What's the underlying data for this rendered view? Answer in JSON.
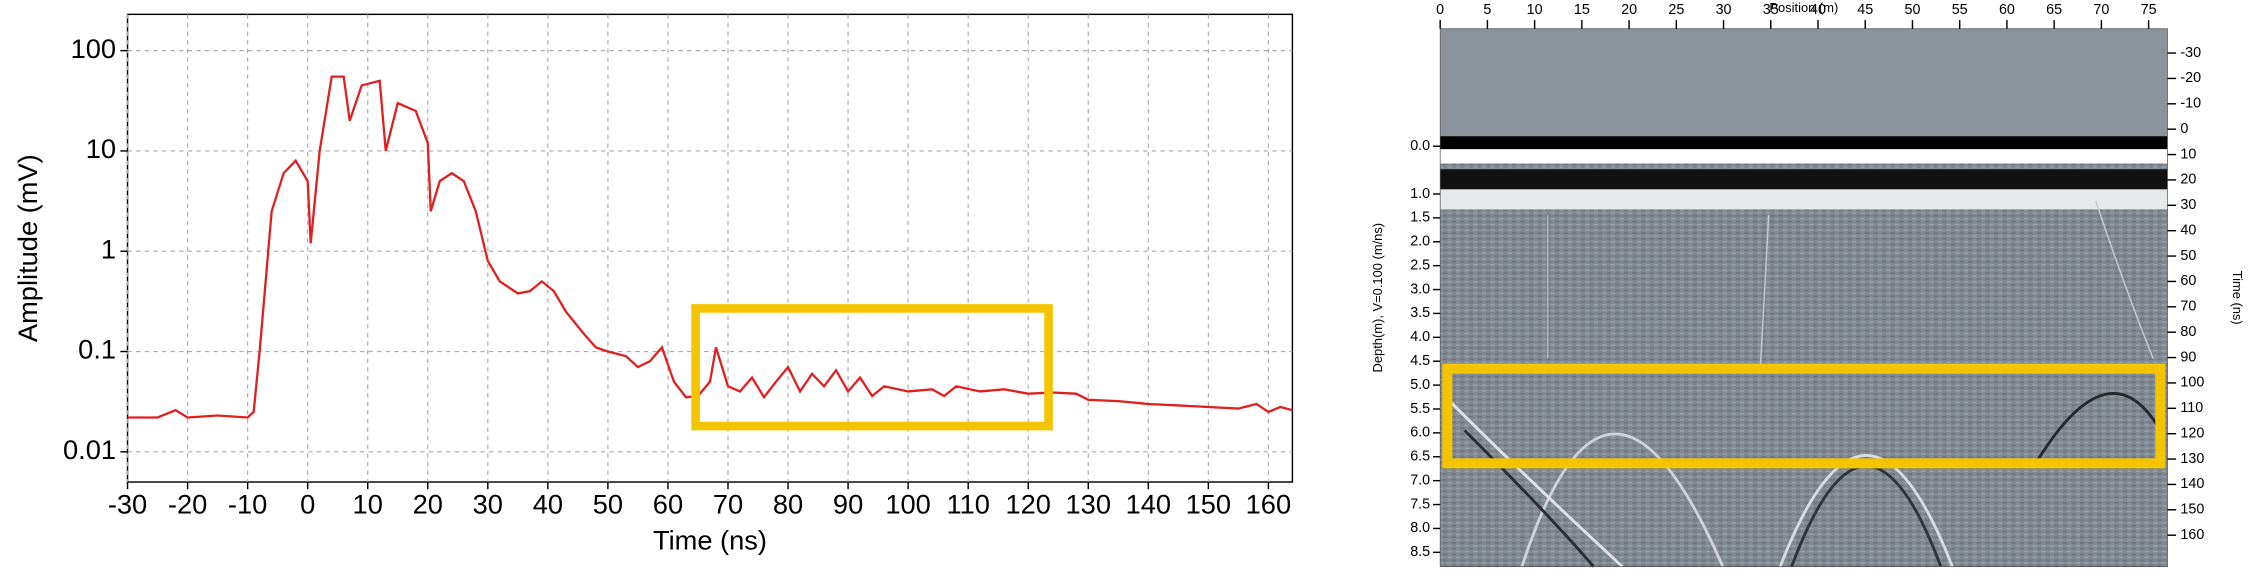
{
  "chart_data": [
    {
      "type": "line",
      "xlabel": "Time (ns)",
      "ylabel": "Amplitude (mV)",
      "log_y": true,
      "grid": true,
      "xlim": [
        -30,
        164
      ],
      "ylim": [
        0.005,
        230
      ],
      "xticks": [
        -30,
        -20,
        -10,
        0,
        10,
        20,
        30,
        40,
        50,
        60,
        70,
        80,
        90,
        100,
        110,
        120,
        130,
        140,
        150,
        160
      ],
      "yticks": [
        0.01,
        0.1,
        1,
        10,
        100
      ],
      "x": [
        -30,
        -25,
        -22,
        -20,
        -15,
        -10,
        -9,
        -8,
        -7,
        -6,
        -4,
        -2,
        0,
        0.5,
        2,
        4,
        6,
        7,
        9,
        12,
        13,
        15,
        18,
        20,
        20.5,
        22,
        24,
        26,
        28,
        30,
        32,
        35,
        37,
        39,
        41,
        43,
        46,
        48,
        50,
        53,
        55,
        57,
        59,
        61,
        63,
        65,
        67,
        68,
        70,
        72,
        74,
        76,
        78,
        80,
        82,
        84,
        86,
        88,
        90,
        92,
        94,
        96,
        100,
        104,
        106,
        108,
        112,
        116,
        120,
        124,
        128,
        130,
        135,
        140,
        145,
        150,
        155,
        158,
        160,
        162,
        164
      ],
      "series": [
        {
          "name": "Amplitude",
          "color": "#e02020",
          "values": [
            0.022,
            0.022,
            0.026,
            0.022,
            0.023,
            0.022,
            0.025,
            0.1,
            0.5,
            2.5,
            6,
            8,
            5,
            1.2,
            10,
            55,
            55,
            20,
            45,
            50,
            10,
            30,
            25,
            12,
            2.5,
            5,
            6,
            5,
            2.5,
            0.8,
            0.5,
            0.38,
            0.4,
            0.5,
            0.4,
            0.25,
            0.15,
            0.11,
            0.1,
            0.09,
            0.07,
            0.08,
            0.11,
            0.05,
            0.035,
            0.036,
            0.05,
            0.11,
            0.045,
            0.04,
            0.055,
            0.035,
            0.05,
            0.07,
            0.04,
            0.06,
            0.045,
            0.065,
            0.04,
            0.055,
            0.036,
            0.045,
            0.04,
            0.042,
            0.036,
            0.045,
            0.04,
            0.042,
            0.038,
            0.039,
            0.038,
            0.033,
            0.032,
            0.03,
            0.029,
            0.028,
            0.027,
            0.03,
            0.025,
            0.028,
            0.026
          ]
        }
      ]
    },
    {
      "type": "radargram",
      "xlabel": "Position (m)",
      "ylabel": "Depth(m), V=0.100 (m/ns)",
      "y2label": "Time (ns)",
      "xlim": [
        0,
        77
      ],
      "xticks": [
        0,
        5,
        10,
        15,
        20,
        25,
        30,
        35,
        40,
        45,
        50,
        55,
        60,
        65,
        70,
        75
      ],
      "ylim": [
        -2.46,
        8.8
      ],
      "yticks": [
        {
          "value": 0,
          "label": "0.0"
        },
        {
          "value": 1,
          "label": "1.0"
        },
        1.5,
        {
          "value": 2,
          "label": "2.0"
        },
        2.5,
        {
          "value": 3,
          "label": "3.0"
        },
        3.5,
        {
          "value": 4,
          "label": "4.0"
        },
        4.5,
        {
          "value": 5,
          "label": "5.0"
        },
        5.5,
        {
          "value": 6,
          "label": "6.0"
        },
        6.5,
        {
          "value": 7,
          "label": "7.0"
        },
        7.5,
        {
          "value": 8,
          "label": "8.0"
        },
        8.5
      ],
      "y2lim": [
        -39.6,
        172.4
      ],
      "y2ticks": [
        -30,
        -20,
        -10,
        0,
        10,
        20,
        30,
        40,
        50,
        60,
        70,
        80,
        90,
        100,
        110,
        120,
        130,
        140,
        150,
        160
      ]
    }
  ]
}
